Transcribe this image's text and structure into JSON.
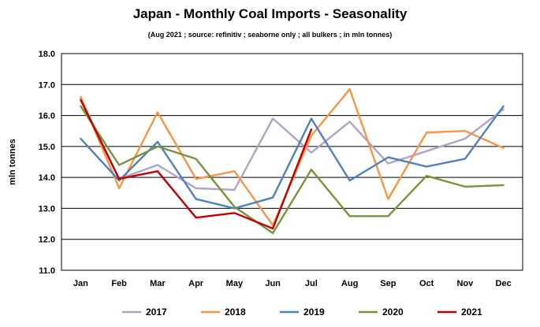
{
  "chart_data": {
    "type": "line",
    "title": "Japan - Monthly Coal Imports - Seasonality",
    "subtitle": "(Aug 2021 ; source: refinitiv ; seaborne only ; all bulkers ; in mln tonnes)",
    "xlabel": "",
    "ylabel": "mln tonnes",
    "ylim": [
      11.0,
      18.0
    ],
    "yticks": [
      "11.0",
      "12.0",
      "13.0",
      "14.0",
      "15.0",
      "16.0",
      "17.0",
      "18.0"
    ],
    "categories": [
      "Jan",
      "Feb",
      "Mar",
      "Apr",
      "May",
      "Jun",
      "Jul",
      "Aug",
      "Sep",
      "Oct",
      "Nov",
      "Dec"
    ],
    "grid": true,
    "legend_position": "bottom",
    "series": [
      {
        "name": "2017",
        "color": "#b3a2c7",
        "values": [
          16.55,
          13.95,
          14.4,
          13.65,
          13.6,
          15.9,
          14.8,
          15.8,
          14.45,
          14.85,
          15.25,
          16.2
        ]
      },
      {
        "name": "2018",
        "color": "#f79646",
        "values": [
          16.6,
          13.65,
          16.1,
          13.95,
          14.2,
          12.45,
          15.35,
          16.85,
          13.3,
          15.45,
          15.5,
          14.95
        ]
      },
      {
        "name": "2019",
        "color": "#4f81bd",
        "values": [
          15.25,
          13.9,
          15.15,
          13.3,
          13.0,
          13.35,
          15.9,
          13.9,
          14.65,
          14.35,
          14.6,
          16.3
        ]
      },
      {
        "name": "2020",
        "color": "#77933c",
        "values": [
          16.3,
          14.4,
          15.0,
          14.6,
          13.05,
          12.2,
          14.25,
          12.75,
          12.75,
          14.05,
          13.7,
          13.75
        ]
      },
      {
        "name": "2021",
        "color": "#c00000",
        "values": [
          16.5,
          13.95,
          14.2,
          12.7,
          12.85,
          12.35,
          15.55,
          null,
          null,
          null,
          null,
          null
        ]
      }
    ]
  }
}
